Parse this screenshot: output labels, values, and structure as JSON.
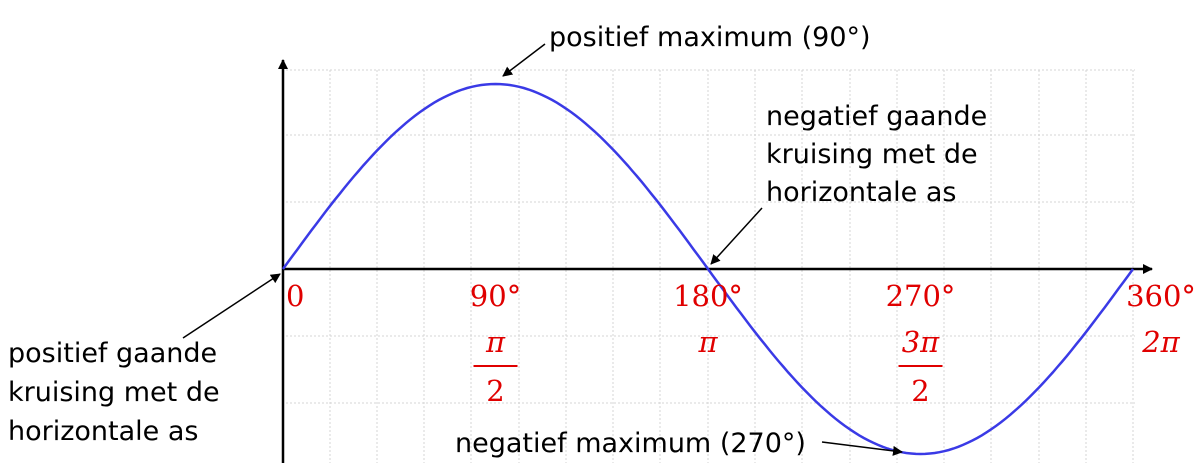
{
  "annotations": {
    "pos_max": "positief maximum (90°)",
    "neg_max": "negatief maximum (270°)",
    "neg_cross": [
      "negatief gaande",
      "kruising met de",
      "horizontale as"
    ],
    "pos_cross": [
      "positief gaande",
      "kruising met de",
      "horizontale as"
    ]
  },
  "ticks": [
    {
      "deg": 0,
      "deg_label": "0",
      "rad_num": "",
      "rad_den": ""
    },
    {
      "deg": 90,
      "deg_label": "90°",
      "rad_num": "π",
      "rad_den": "2"
    },
    {
      "deg": 180,
      "deg_label": "180°",
      "rad_num": "π",
      "rad_den": ""
    },
    {
      "deg": 270,
      "deg_label": "270°",
      "rad_num": "3π",
      "rad_den": "2"
    },
    {
      "deg": 360,
      "deg_label": "360°",
      "rad_num": "2π",
      "rad_den": ""
    }
  ],
  "curve": {
    "function": "sine",
    "x_range_deg": [
      0,
      360
    ],
    "amplitude": 1
  },
  "colors": {
    "curve": "#3a3ae6",
    "tick_labels": "#e00000",
    "axes": "#000000",
    "grid": "#d4d4d4"
  }
}
